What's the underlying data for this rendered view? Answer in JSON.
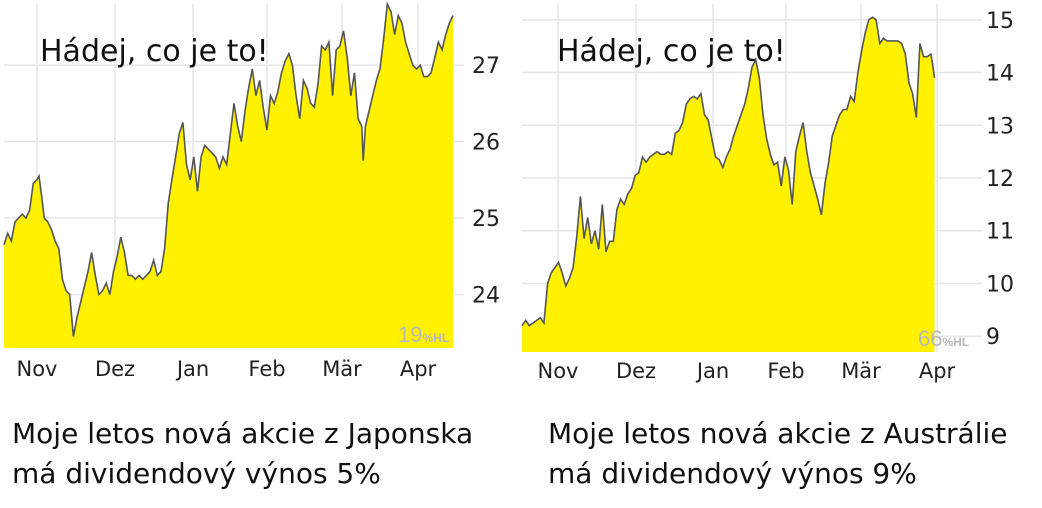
{
  "charts": [
    {
      "overlay_text": "Hádej, co je to!",
      "caption_line1": "Moje letos nová akcie z Japonska",
      "caption_line2": "má dividendový výnos 5%",
      "watermark_value": "19",
      "watermark_suffix": "%HL",
      "fill_color": "#fff200",
      "line_color": "#555555"
    },
    {
      "overlay_text": "Hádej, co je to!",
      "caption_line1": "Moje letos nová akcie z Austrálie",
      "caption_line2": "má dividendový výnos 9%",
      "watermark_value": "66",
      "watermark_suffix": "%HL",
      "fill_color": "#fff200",
      "line_color": "#555555"
    }
  ],
  "chart_data": [
    {
      "type": "area",
      "x_ticks": [
        "Nov",
        "Dez",
        "Jan",
        "Feb",
        "Mär",
        "Apr"
      ],
      "y_ticks": [
        24,
        25,
        26,
        27
      ],
      "ylim": [
        23.3,
        27.8
      ],
      "grid": true,
      "y_axis_side": "right",
      "x_span": [
        0,
        6.3
      ],
      "points": [
        [
          0.0,
          24.65
        ],
        [
          0.05,
          24.8
        ],
        [
          0.1,
          24.7
        ],
        [
          0.15,
          24.95
        ],
        [
          0.2,
          25.0
        ],
        [
          0.25,
          25.05
        ],
        [
          0.3,
          25.0
        ],
        [
          0.35,
          25.1
        ],
        [
          0.4,
          25.45
        ],
        [
          0.45,
          25.5
        ],
        [
          0.48,
          25.55
        ],
        [
          0.52,
          25.25
        ],
        [
          0.55,
          25.0
        ],
        [
          0.6,
          24.95
        ],
        [
          0.65,
          24.85
        ],
        [
          0.7,
          24.7
        ],
        [
          0.75,
          24.6
        ],
        [
          0.8,
          24.2
        ],
        [
          0.85,
          24.05
        ],
        [
          0.9,
          24.0
        ],
        [
          0.95,
          23.45
        ],
        [
          1.0,
          23.7
        ],
        [
          1.05,
          23.9
        ],
        [
          1.1,
          24.1
        ],
        [
          1.15,
          24.3
        ],
        [
          1.2,
          24.55
        ],
        [
          1.25,
          24.25
        ],
        [
          1.3,
          24.0
        ],
        [
          1.35,
          24.05
        ],
        [
          1.4,
          24.15
        ],
        [
          1.45,
          24.0
        ],
        [
          1.5,
          24.3
        ],
        [
          1.55,
          24.5
        ],
        [
          1.6,
          24.75
        ],
        [
          1.65,
          24.55
        ],
        [
          1.7,
          24.25
        ],
        [
          1.75,
          24.25
        ],
        [
          1.8,
          24.2
        ],
        [
          1.85,
          24.25
        ],
        [
          1.9,
          24.2
        ],
        [
          1.95,
          24.25
        ],
        [
          2.0,
          24.3
        ],
        [
          2.05,
          24.45
        ],
        [
          2.1,
          24.25
        ],
        [
          2.15,
          24.3
        ],
        [
          2.2,
          24.6
        ],
        [
          2.25,
          25.2
        ],
        [
          2.3,
          25.5
        ],
        [
          2.35,
          25.8
        ],
        [
          2.4,
          26.1
        ],
        [
          2.45,
          26.25
        ],
        [
          2.5,
          25.7
        ],
        [
          2.55,
          25.5
        ],
        [
          2.6,
          25.8
        ],
        [
          2.65,
          25.35
        ],
        [
          2.7,
          25.8
        ],
        [
          2.75,
          25.95
        ],
        [
          2.8,
          25.9
        ],
        [
          2.85,
          25.85
        ],
        [
          2.9,
          25.8
        ],
        [
          2.95,
          25.65
        ],
        [
          3.0,
          25.8
        ],
        [
          3.05,
          25.7
        ],
        [
          3.1,
          26.1
        ],
        [
          3.15,
          26.5
        ],
        [
          3.2,
          26.2
        ],
        [
          3.25,
          26.0
        ],
        [
          3.3,
          26.4
        ],
        [
          3.35,
          26.7
        ],
        [
          3.4,
          26.95
        ],
        [
          3.45,
          26.6
        ],
        [
          3.5,
          26.8
        ],
        [
          3.55,
          26.45
        ],
        [
          3.6,
          26.15
        ],
        [
          3.65,
          26.6
        ],
        [
          3.7,
          26.5
        ],
        [
          3.75,
          26.65
        ],
        [
          3.8,
          26.9
        ],
        [
          3.85,
          27.05
        ],
        [
          3.9,
          27.15
        ],
        [
          3.95,
          27.0
        ],
        [
          4.0,
          26.6
        ],
        [
          4.05,
          26.3
        ],
        [
          4.1,
          26.8
        ],
        [
          4.15,
          26.7
        ],
        [
          4.2,
          26.5
        ],
        [
          4.25,
          26.45
        ],
        [
          4.3,
          26.75
        ],
        [
          4.35,
          27.25
        ],
        [
          4.4,
          27.2
        ],
        [
          4.45,
          27.3
        ],
        [
          4.5,
          26.6
        ],
        [
          4.55,
          27.2
        ],
        [
          4.6,
          27.25
        ],
        [
          4.65,
          27.45
        ],
        [
          4.7,
          27.1
        ],
        [
          4.75,
          26.6
        ],
        [
          4.8,
          26.9
        ],
        [
          4.85,
          26.3
        ],
        [
          4.9,
          26.2
        ],
        [
          4.92,
          25.75
        ],
        [
          4.95,
          26.2
        ],
        [
          5.0,
          26.4
        ],
        [
          5.05,
          26.6
        ],
        [
          5.1,
          26.8
        ],
        [
          5.15,
          26.95
        ],
        [
          5.2,
          27.35
        ],
        [
          5.25,
          27.8
        ],
        [
          5.3,
          27.7
        ],
        [
          5.35,
          27.4
        ],
        [
          5.4,
          27.65
        ],
        [
          5.45,
          27.55
        ],
        [
          5.5,
          27.3
        ],
        [
          5.55,
          27.15
        ],
        [
          5.6,
          27.0
        ],
        [
          5.65,
          26.95
        ],
        [
          5.7,
          27.0
        ],
        [
          5.75,
          26.85
        ],
        [
          5.8,
          26.85
        ],
        [
          5.85,
          26.9
        ],
        [
          5.9,
          27.1
        ],
        [
          5.95,
          27.3
        ],
        [
          6.0,
          27.2
        ],
        [
          6.05,
          27.4
        ],
        [
          6.1,
          27.55
        ],
        [
          6.15,
          27.65
        ]
      ]
    },
    {
      "type": "area",
      "x_ticks": [
        "Nov",
        "Dez",
        "Jan",
        "Feb",
        "Mär",
        "Apr"
      ],
      "y_ticks": [
        9,
        10,
        11,
        12,
        13,
        14,
        15
      ],
      "ylim": [
        8.7,
        15.3
      ],
      "grid": true,
      "y_axis_side": "right",
      "x_span": [
        0,
        6.3
      ],
      "points": [
        [
          0.0,
          9.2
        ],
        [
          0.05,
          9.3
        ],
        [
          0.1,
          9.2
        ],
        [
          0.15,
          9.25
        ],
        [
          0.2,
          9.3
        ],
        [
          0.25,
          9.35
        ],
        [
          0.3,
          9.25
        ],
        [
          0.35,
          10.0
        ],
        [
          0.4,
          10.2
        ],
        [
          0.45,
          10.3
        ],
        [
          0.5,
          10.4
        ],
        [
          0.55,
          10.2
        ],
        [
          0.6,
          9.95
        ],
        [
          0.65,
          10.1
        ],
        [
          0.7,
          10.3
        ],
        [
          0.75,
          10.9
        ],
        [
          0.8,
          11.65
        ],
        [
          0.85,
          10.85
        ],
        [
          0.9,
          11.25
        ],
        [
          0.95,
          10.75
        ],
        [
          1.0,
          11.0
        ],
        [
          1.05,
          10.65
        ],
        [
          1.1,
          11.5
        ],
        [
          1.15,
          10.6
        ],
        [
          1.2,
          10.8
        ],
        [
          1.25,
          10.8
        ],
        [
          1.3,
          11.4
        ],
        [
          1.35,
          11.6
        ],
        [
          1.4,
          11.5
        ],
        [
          1.45,
          11.7
        ],
        [
          1.5,
          11.8
        ],
        [
          1.55,
          12.05
        ],
        [
          1.6,
          12.1
        ],
        [
          1.65,
          12.4
        ],
        [
          1.7,
          12.3
        ],
        [
          1.75,
          12.4
        ],
        [
          1.8,
          12.45
        ],
        [
          1.85,
          12.5
        ],
        [
          1.9,
          12.45
        ],
        [
          1.95,
          12.45
        ],
        [
          2.0,
          12.5
        ],
        [
          2.05,
          12.45
        ],
        [
          2.1,
          12.85
        ],
        [
          2.15,
          12.9
        ],
        [
          2.2,
          13.05
        ],
        [
          2.25,
          13.4
        ],
        [
          2.3,
          13.5
        ],
        [
          2.35,
          13.55
        ],
        [
          2.4,
          13.5
        ],
        [
          2.45,
          13.6
        ],
        [
          2.5,
          13.2
        ],
        [
          2.55,
          13.1
        ],
        [
          2.6,
          12.75
        ],
        [
          2.65,
          12.4
        ],
        [
          2.7,
          12.35
        ],
        [
          2.75,
          12.2
        ],
        [
          2.8,
          12.4
        ],
        [
          2.85,
          12.55
        ],
        [
          2.9,
          12.8
        ],
        [
          2.95,
          13.0
        ],
        [
          3.0,
          13.2
        ],
        [
          3.05,
          13.4
        ],
        [
          3.1,
          13.7
        ],
        [
          3.15,
          14.1
        ],
        [
          3.2,
          14.25
        ],
        [
          3.25,
          13.9
        ],
        [
          3.3,
          13.2
        ],
        [
          3.35,
          12.75
        ],
        [
          3.4,
          12.45
        ],
        [
          3.45,
          12.25
        ],
        [
          3.5,
          12.3
        ],
        [
          3.55,
          11.85
        ],
        [
          3.6,
          12.4
        ],
        [
          3.65,
          12.15
        ],
        [
          3.7,
          11.5
        ],
        [
          3.75,
          12.5
        ],
        [
          3.8,
          12.8
        ],
        [
          3.85,
          13.05
        ],
        [
          3.9,
          12.5
        ],
        [
          3.95,
          12.1
        ],
        [
          4.0,
          11.85
        ],
        [
          4.05,
          11.6
        ],
        [
          4.1,
          11.3
        ],
        [
          4.15,
          11.9
        ],
        [
          4.2,
          12.3
        ],
        [
          4.25,
          12.8
        ],
        [
          4.3,
          13.0
        ],
        [
          4.35,
          13.2
        ],
        [
          4.4,
          13.3
        ],
        [
          4.45,
          13.3
        ],
        [
          4.5,
          13.55
        ],
        [
          4.55,
          13.45
        ],
        [
          4.6,
          14.0
        ],
        [
          4.65,
          14.4
        ],
        [
          4.7,
          14.75
        ],
        [
          4.75,
          15.0
        ],
        [
          4.8,
          15.05
        ],
        [
          4.85,
          15.0
        ],
        [
          4.9,
          14.55
        ],
        [
          4.95,
          14.65
        ],
        [
          5.0,
          14.6
        ],
        [
          5.05,
          14.6
        ],
        [
          5.1,
          14.6
        ],
        [
          5.15,
          14.6
        ],
        [
          5.2,
          14.55
        ],
        [
          5.25,
          14.35
        ],
        [
          5.3,
          13.8
        ],
        [
          5.35,
          13.6
        ],
        [
          5.4,
          13.15
        ],
        [
          5.45,
          14.55
        ],
        [
          5.5,
          14.3
        ],
        [
          5.55,
          14.3
        ],
        [
          5.6,
          14.35
        ],
        [
          5.62,
          14.2
        ],
        [
          5.65,
          13.9
        ]
      ]
    }
  ]
}
